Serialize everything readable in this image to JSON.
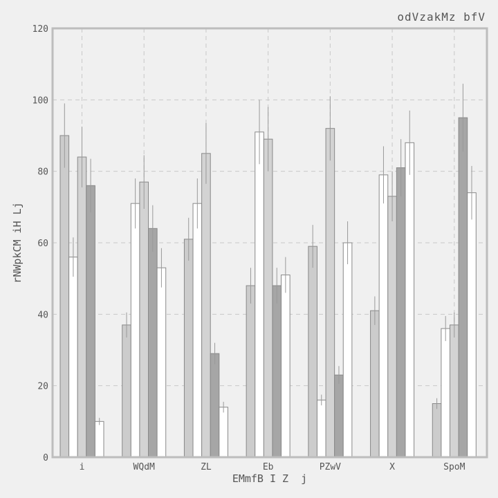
{
  "chart_data": {
    "type": "bar",
    "title": "odVzakMz bfV",
    "xlabel": "EMmfB I Z  j",
    "ylabel": "rNWpkCM iH Lj",
    "ylim": [
      0,
      120
    ],
    "yticks": [
      0,
      20,
      40,
      60,
      80,
      100,
      120
    ],
    "grid": true,
    "legend": "none",
    "categories": [
      "i",
      "WQdM",
      "ZL",
      "Eb",
      "PZwV",
      "X",
      "SpoM"
    ],
    "series": [
      {
        "values": [
          90,
          37,
          61,
          48,
          59,
          41,
          15
        ],
        "errors": [
          9,
          3.5,
          6,
          5,
          6,
          4,
          1.5
        ],
        "color": "#cccccc"
      },
      {
        "values": [
          56,
          71,
          71,
          91,
          16,
          79,
          36
        ],
        "errors": [
          5.5,
          7,
          7,
          9,
          1.5,
          8,
          3.5
        ],
        "color": "#ffffff"
      },
      {
        "values": [
          84,
          77,
          85,
          89,
          92,
          73,
          37
        ],
        "errors": [
          8.5,
          7.5,
          8.5,
          9,
          9,
          7,
          3.5
        ],
        "color": "#d3d3d3"
      },
      {
        "values": [
          76,
          64,
          29,
          48,
          23,
          81,
          95
        ],
        "errors": [
          7.5,
          6.5,
          3,
          5,
          2.5,
          8,
          9.5
        ],
        "color": "#a6a6a6"
      },
      {
        "values": [
          10,
          53,
          14,
          51,
          60,
          88,
          74
        ],
        "errors": [
          1,
          5.5,
          1.5,
          5,
          6,
          9,
          7.5
        ],
        "color": "#ffffff"
      }
    ],
    "colors": {
      "background": "#f0f0f0",
      "frame": "#bdbdbd",
      "grid": "#c8c8c8",
      "bar_edge": "#888888",
      "error_bar": "#999999",
      "text": "#555555"
    }
  }
}
